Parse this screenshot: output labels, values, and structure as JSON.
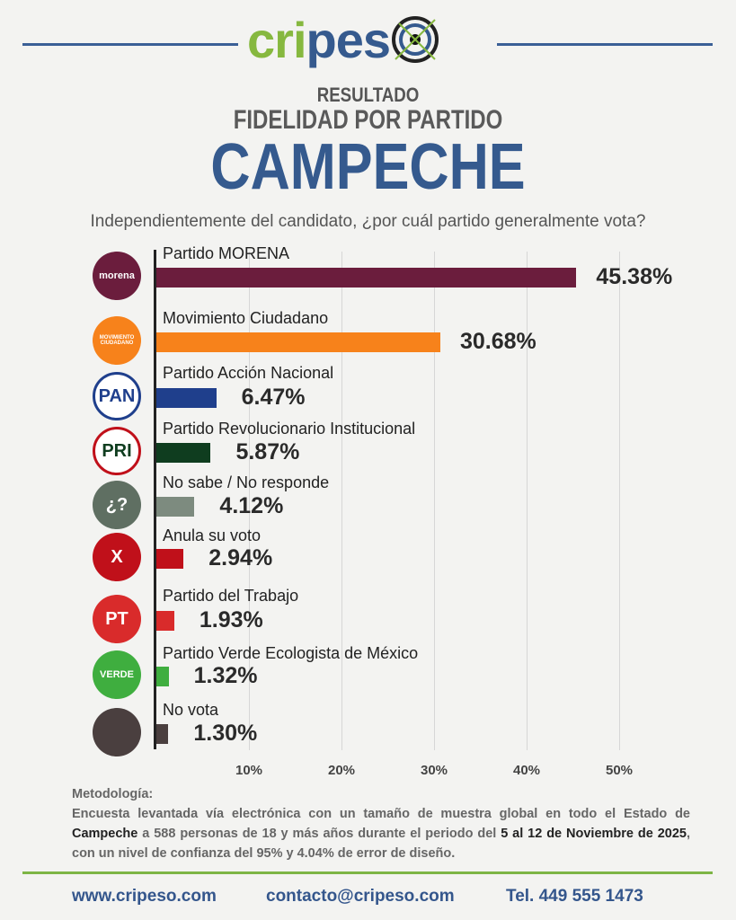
{
  "header": {
    "logo": "cripeso",
    "subtitle1": "RESULTADO",
    "subtitle2": "FIDELIDAD POR PARTIDO",
    "title": "CAMPECHE",
    "question": "Independientemente del candidato, ¿por cuál partido generalmente vota?"
  },
  "chart_data": {
    "type": "bar",
    "orientation": "horizontal",
    "categories": [
      "Partido MORENA",
      "Movimiento Ciudadano",
      "Partido Acción Nacional",
      "Partido Revolucionario Institucional",
      "No sabe / No responde",
      "Anula su voto",
      "Partido del Trabajo",
      "Partido Verde Ecologista de México",
      "No vota"
    ],
    "values": [
      45.38,
      30.68,
      6.47,
      5.87,
      4.12,
      2.94,
      1.93,
      1.32,
      1.3
    ],
    "value_labels": [
      "45.38%",
      "30.68%",
      "6.47%",
      "5.87%",
      "4.12%",
      "2.94%",
      "1.93%",
      "1.32%",
      "1.30%"
    ],
    "colors": [
      "#6b1d3d",
      "#f7821b",
      "#1f3f8c",
      "#0f3d1f",
      "#7d8b7f",
      "#c0101a",
      "#d92b2b",
      "#3fae3f",
      "#4a3f3f"
    ],
    "icons": [
      {
        "name": "morena-logo-icon",
        "text": "morena",
        "bg": "#6b1d3d"
      },
      {
        "name": "movimiento-ciudadano-logo-icon",
        "text": "MOVIMIENTO CIUDADANO",
        "bg": "#f7821b"
      },
      {
        "name": "pan-logo-icon",
        "text": "PAN",
        "bg": "#ffffff"
      },
      {
        "name": "pri-logo-icon",
        "text": "PRI",
        "bg": "#ffffff"
      },
      {
        "name": "question-mark-icon",
        "text": "¿?",
        "bg": "#5f6f62"
      },
      {
        "name": "x-mark-icon",
        "text": "X",
        "bg": "#c0101a"
      },
      {
        "name": "pt-logo-icon",
        "text": "PT",
        "bg": "#d92b2b"
      },
      {
        "name": "verde-logo-icon",
        "text": "VERDE",
        "bg": "#3fae3f"
      },
      {
        "name": "ballot-icon",
        "text": "",
        "bg": "#4a3f3f"
      }
    ],
    "xticks": [
      "10%",
      "20%",
      "30%",
      "40%",
      "50%"
    ],
    "xlim": [
      0,
      50
    ],
    "grid": true
  },
  "methodology": {
    "title": "Metodología:",
    "p1": "Encuesta levantada vía electrónica con un tamaño de muestra global en todo el Estado de ",
    "b1": "Campeche",
    "p2": " a 588 personas de 18 y más años durante el periodo del ",
    "b2": "5 al 12 de Noviembre de 2025",
    "p3": ", con un nivel de confianza del 95% y 4.04% de error de diseño."
  },
  "footer": {
    "website": "www.cripeso.com",
    "email": "contacto@cripeso.com",
    "phone": "Tel. 449 555 1473"
  }
}
